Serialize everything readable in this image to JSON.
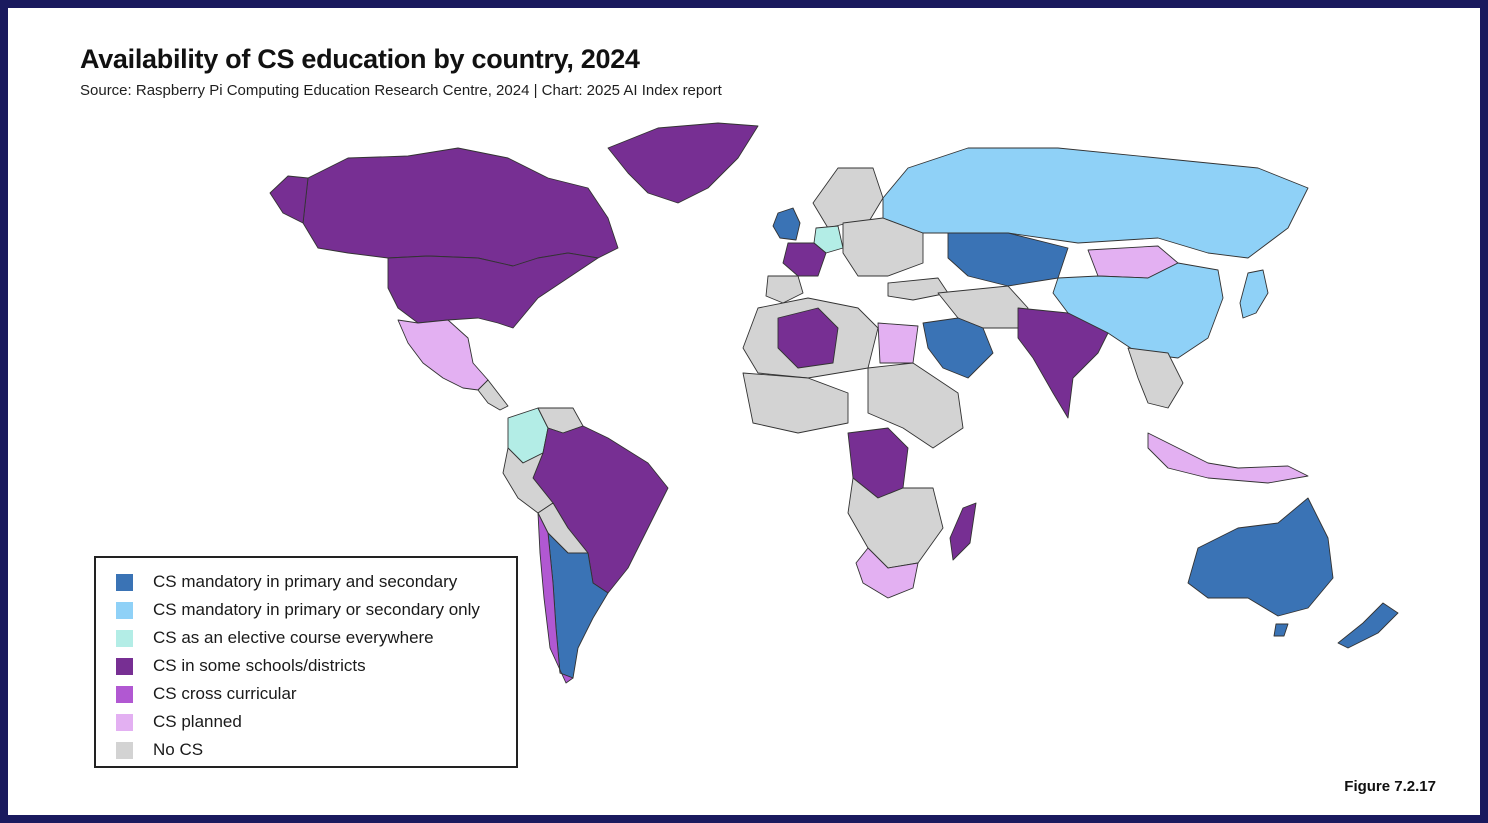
{
  "header": {
    "title": "Availability of CS education by country, 2024",
    "subtitle": "Source: Raspberry Pi Computing Education Research Centre, 2024 | Chart: 2025 AI Index report"
  },
  "legend": {
    "items": [
      {
        "key": "mandatory_both",
        "label": "CS mandatory in primary and secondary",
        "color": "#3a73b5"
      },
      {
        "key": "mandatory_one",
        "label": "CS mandatory in primary or secondary only",
        "color": "#8fd1f7"
      },
      {
        "key": "elective",
        "label": "CS as an elective course everywhere",
        "color": "#b3ede6"
      },
      {
        "key": "some_schools",
        "label": "CS in some schools/districts",
        "color": "#772f93"
      },
      {
        "key": "cross_curricular",
        "label": "CS cross curricular",
        "color": "#b158d2"
      },
      {
        "key": "planned",
        "label": "CS planned",
        "color": "#e3b0f2"
      },
      {
        "key": "no_cs",
        "label": "No CS",
        "color": "#d3d3d3"
      }
    ]
  },
  "map": {
    "regions": [
      {
        "name": "Canada",
        "category": "some_schools"
      },
      {
        "name": "United States",
        "category": "some_schools"
      },
      {
        "name": "Greenland",
        "category": "some_schools"
      },
      {
        "name": "Mexico",
        "category": "planned"
      },
      {
        "name": "Colombia",
        "category": "elective"
      },
      {
        "name": "Brazil",
        "category": "some_schools"
      },
      {
        "name": "Argentina",
        "category": "mandatory_both"
      },
      {
        "name": "Chile",
        "category": "cross_curricular"
      },
      {
        "name": "Russia",
        "category": "mandatory_one"
      },
      {
        "name": "China",
        "category": "mandatory_one"
      },
      {
        "name": "Mongolia",
        "category": "planned"
      },
      {
        "name": "Kazakhstan",
        "category": "mandatory_both"
      },
      {
        "name": "India",
        "category": "some_schools"
      },
      {
        "name": "Saudi Arabia",
        "category": "mandatory_both"
      },
      {
        "name": "Egypt",
        "category": "planned"
      },
      {
        "name": "Algeria",
        "category": "some_schools"
      },
      {
        "name": "DR Congo",
        "category": "some_schools"
      },
      {
        "name": "South Africa",
        "category": "planned"
      },
      {
        "name": "Madagascar",
        "category": "some_schools"
      },
      {
        "name": "Australia",
        "category": "mandatory_both"
      },
      {
        "name": "New Zealand",
        "category": "mandatory_both"
      },
      {
        "name": "Japan",
        "category": "mandatory_one"
      },
      {
        "name": "Indonesia",
        "category": "planned"
      },
      {
        "name": "Germany",
        "category": "elective"
      },
      {
        "name": "France",
        "category": "some_schools"
      },
      {
        "name": "United Kingdom",
        "category": "mandatory_both"
      }
    ]
  },
  "footer": {
    "figure": "Figure 7.2.17"
  }
}
